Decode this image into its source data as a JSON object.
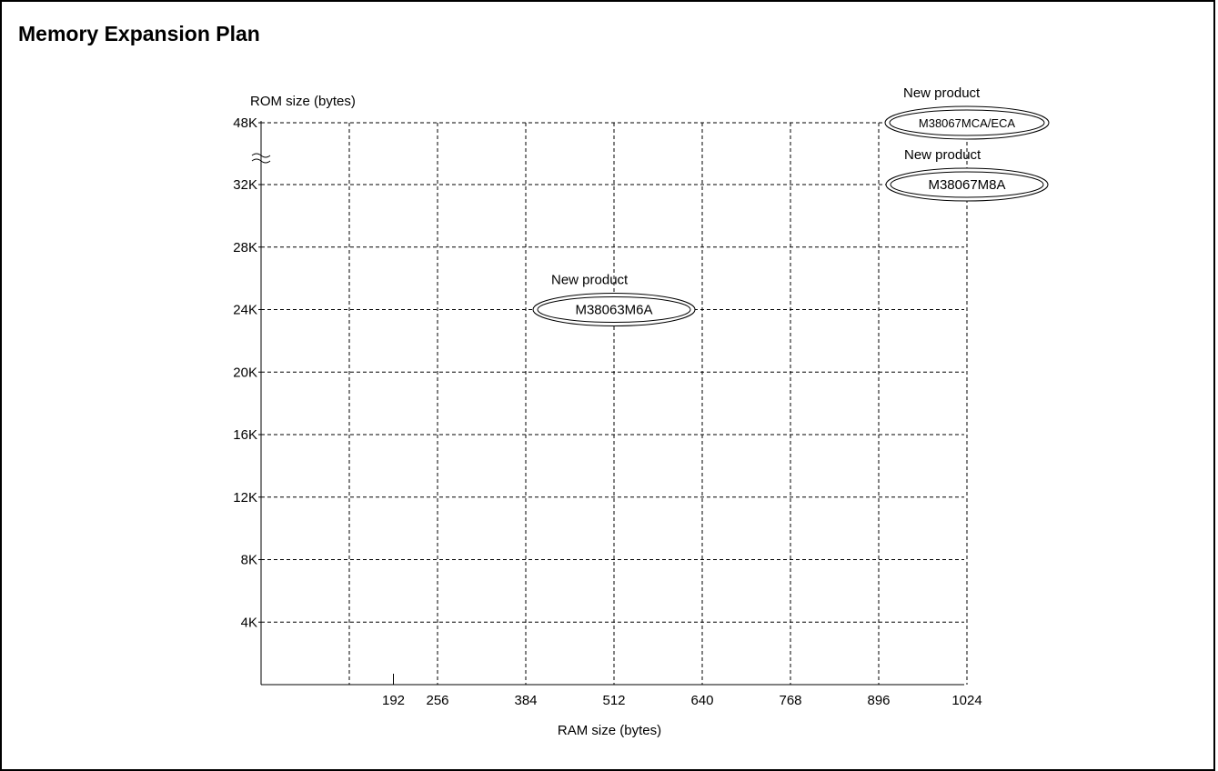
{
  "page": {
    "title": "Memory Expansion Plan"
  },
  "chart_data": {
    "type": "scatter",
    "title": "Memory Expansion Plan",
    "xlabel": "RAM size (bytes)",
    "ylabel": "ROM size (bytes)",
    "x_ticks": [
      192,
      256,
      384,
      512,
      640,
      768,
      896,
      1024
    ],
    "x_tick_labels": [
      "192",
      "256",
      "384",
      "512",
      "640",
      "768",
      "896",
      "1024"
    ],
    "x_gridlines": [
      128,
      256,
      384,
      512,
      640,
      768,
      896,
      1024
    ],
    "y_ticks": [
      4096,
      8192,
      12288,
      16384,
      20480,
      24576,
      28672,
      32768,
      49152
    ],
    "y_tick_labels": [
      "4K",
      "8K",
      "12K",
      "16K",
      "20K",
      "24K",
      "28K",
      "32K",
      "48K"
    ],
    "y_axis_break": "between 32K and 48K",
    "grid": true,
    "points": [
      {
        "label": "M38063M6A",
        "ram": 512,
        "rom": 24576,
        "note": "New product"
      },
      {
        "label": "M38067M8A",
        "ram": 1024,
        "rom": 32768,
        "note": "New product"
      },
      {
        "label": "M38067MCA/ECA",
        "ram": 1024,
        "rom": 49152,
        "note": "New product"
      }
    ],
    "colors": {
      "ink": "#000000",
      "background": "#ffffff"
    }
  }
}
